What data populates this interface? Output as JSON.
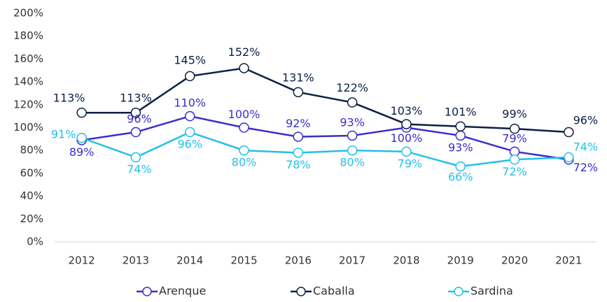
{
  "chart_data": {
    "type": "line",
    "categories": [
      "2012",
      "2013",
      "2014",
      "2015",
      "2016",
      "2017",
      "2018",
      "2019",
      "2020",
      "2021"
    ],
    "series": [
      {
        "name": "Arenque",
        "color": "#3a2ecc",
        "values": [
          89,
          96,
          110,
          100,
          92,
          93,
          100,
          93,
          79,
          72
        ],
        "value_labels": [
          "89%",
          "96%",
          "110%",
          "100%",
          "92%",
          "93%",
          "100%",
          "93%",
          "79%",
          "72%"
        ]
      },
      {
        "name": "Caballa",
        "color": "#0c1f45",
        "values": [
          113,
          113,
          145,
          152,
          131,
          122,
          103,
          101,
          99,
          96
        ],
        "value_labels": [
          "113%",
          "113%",
          "145%",
          "152%",
          "131%",
          "122%",
          "103%",
          "101%",
          "99%",
          "96%"
        ]
      },
      {
        "name": "Sardina",
        "color": "#22c0ea",
        "values": [
          91,
          74,
          96,
          80,
          78,
          80,
          79,
          66,
          72,
          74
        ],
        "value_labels": [
          "91%",
          "74%",
          "96%",
          "80%",
          "78%",
          "80%",
          "79%",
          "66%",
          "72%",
          "74%"
        ]
      }
    ],
    "ylim": [
      0,
      200
    ],
    "yticks": [
      {
        "value": 0,
        "label": "0%"
      },
      {
        "value": 20,
        "label": "20%"
      },
      {
        "value": 40,
        "label": "40%"
      },
      {
        "value": 60,
        "label": "60%"
      },
      {
        "value": 80,
        "label": "80%"
      },
      {
        "value": 100,
        "label": "100%"
      },
      {
        "value": 120,
        "label": "120%"
      },
      {
        "value": 140,
        "label": "140%"
      },
      {
        "value": 160,
        "label": "160%"
      },
      {
        "value": 180,
        "label": "180%"
      },
      {
        "value": 200,
        "label": "200%"
      }
    ],
    "grid": false,
    "legend": "bottom"
  }
}
